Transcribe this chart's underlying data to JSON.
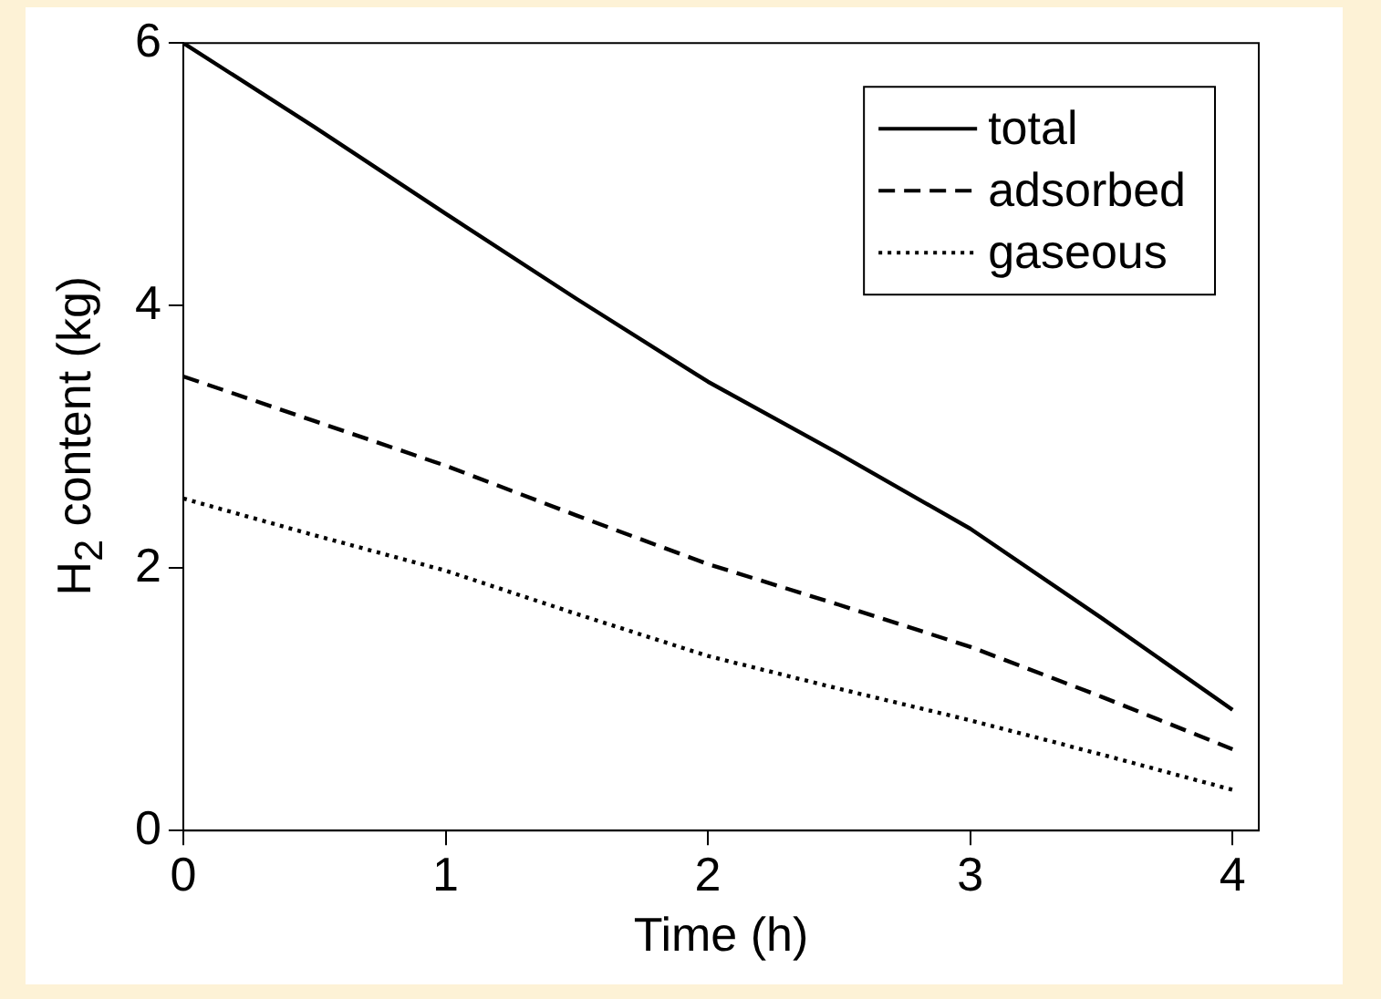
{
  "chart_data": {
    "type": "line",
    "xlabel": "Time (h)",
    "ylabel": "H$_{2}$ content (kg)",
    "x": [
      0,
      0.5,
      1,
      1.5,
      2,
      2.5,
      3,
      3.5,
      4
    ],
    "xlim": [
      0,
      4.1
    ],
    "xticks": [
      0,
      1,
      2,
      3,
      4
    ],
    "ylim": [
      0,
      6
    ],
    "yticks": [
      0,
      2,
      4,
      6
    ],
    "grid": false,
    "legend": "top right",
    "marker": "none",
    "series": [
      {
        "name": "total",
        "color": "#000000",
        "line_style": "solid",
        "values": [
          6.0,
          5.36,
          4.7,
          4.05,
          3.42,
          2.87,
          2.3,
          1.62,
          0.92
        ]
      },
      {
        "name": "adsorbed",
        "color": "#000000",
        "line_style": "dashed",
        "values": [
          3.46,
          3.12,
          2.78,
          2.4,
          2.03,
          1.72,
          1.4,
          1.02,
          0.62
        ]
      },
      {
        "name": "gaseous",
        "color": "#000000",
        "line_style": "dotted",
        "values": [
          2.53,
          2.25,
          1.98,
          1.65,
          1.33,
          1.08,
          0.84,
          0.58,
          0.31
        ]
      }
    ]
  }
}
